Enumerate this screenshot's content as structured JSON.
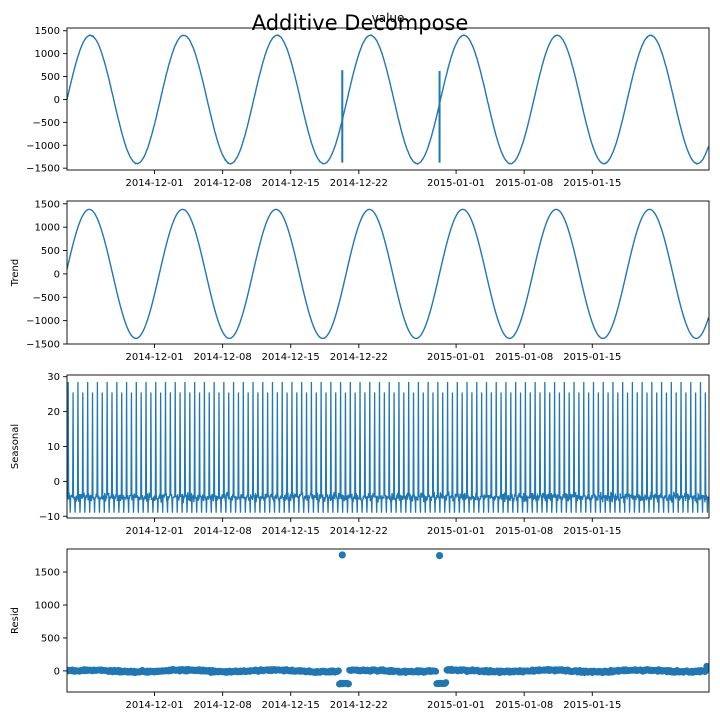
{
  "figure": {
    "title": "Additive Decompose"
  },
  "chart_data": [
    {
      "type": "line",
      "title": "value",
      "xlabel": "",
      "ylabel": "",
      "xlim": [
        "2014-11-22",
        "2015-01-27"
      ],
      "ylim": [
        -1540,
        1560
      ],
      "yticks": [
        -1500,
        -1000,
        -500,
        0,
        500,
        1000,
        1500
      ],
      "xticks": [
        "2014-12-01",
        "2014-12-08",
        "2014-12-15",
        "2014-12-22",
        "2015-01-01",
        "2015-01-08",
        "2015-01-15"
      ],
      "signal": {
        "form": "sinusoid",
        "amplitude": 1400,
        "period_days": 9.6,
        "start_value": 0
      },
      "spikes": [
        {
          "x": "2014-12-20",
          "y_from": -1380,
          "y_to": 640
        },
        {
          "x": "2014-12-30",
          "y_from": -1380,
          "y_to": 620
        }
      ],
      "color": "#1f77b4"
    },
    {
      "type": "line",
      "title": "",
      "xlabel": "",
      "ylabel": "Trend",
      "xlim": [
        "2014-11-22",
        "2015-01-27"
      ],
      "ylim": [
        -1500,
        1560
      ],
      "yticks": [
        -1500,
        -1000,
        -500,
        0,
        500,
        1000,
        1500
      ],
      "xticks": [
        "2014-12-01",
        "2014-12-08",
        "2014-12-15",
        "2014-12-22",
        "2015-01-01",
        "2015-01-08",
        "2015-01-15"
      ],
      "signal": {
        "form": "sinusoid",
        "amplitude": 1380,
        "period_days": 9.6,
        "start_value": 100
      },
      "anomalies": [
        {
          "x_start": "2014-12-20",
          "x_end": "2014-12-21",
          "y": -1150
        },
        {
          "x_start": "2014-12-30",
          "x_end": "2014-12-31",
          "y": -1150
        }
      ],
      "color": "#1f77b4"
    },
    {
      "type": "line",
      "title": "",
      "xlabel": "",
      "ylabel": "Seasonal",
      "xlim": [
        "2014-11-22",
        "2015-01-27"
      ],
      "ylim": [
        -10.5,
        30.5
      ],
      "yticks": [
        -10,
        0,
        10,
        20,
        30
      ],
      "xticks": [
        "2014-12-01",
        "2014-12-08",
        "2014-12-15",
        "2014-12-22",
        "2015-01-01",
        "2015-01-08",
        "2015-01-15"
      ],
      "pattern": {
        "period_days": 1,
        "baseline": -4.5,
        "high_peak": 28.5,
        "second_peak": 25.5,
        "low": -9.0
      },
      "color": "#1f77b4"
    },
    {
      "type": "scatter",
      "title": "",
      "xlabel": "",
      "ylabel": "Resid",
      "xlim": [
        "2014-11-22",
        "2015-01-27"
      ],
      "ylim": [
        -320,
        1850
      ],
      "yticks": [
        0,
        500,
        1000,
        1500
      ],
      "xticks": [
        "2014-12-01",
        "2014-12-08",
        "2014-12-15",
        "2014-12-22",
        "2015-01-01",
        "2015-01-08",
        "2015-01-15"
      ],
      "baseline_band": {
        "center": 0,
        "spread": 55
      },
      "dips": [
        {
          "x_start": "2014-12-20",
          "x_end": "2014-12-21",
          "y": -190
        },
        {
          "x_start": "2014-12-30",
          "x_end": "2014-12-31",
          "y": -190
        }
      ],
      "outliers": [
        {
          "x": "2014-12-20",
          "y": 1760
        },
        {
          "x": "2014-12-30",
          "y": 1750
        }
      ],
      "color": "#1f77b4"
    }
  ]
}
